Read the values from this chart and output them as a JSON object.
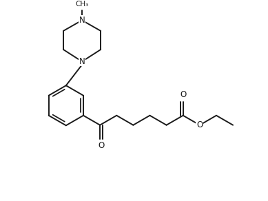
{
  "bg_color": "#ffffff",
  "line_color": "#1a1a1a",
  "line_width": 1.4,
  "figsize": [
    3.89,
    2.92
  ],
  "dpi": 100,
  "xlim": [
    0,
    9.5
  ],
  "ylim": [
    0,
    7.2
  ]
}
